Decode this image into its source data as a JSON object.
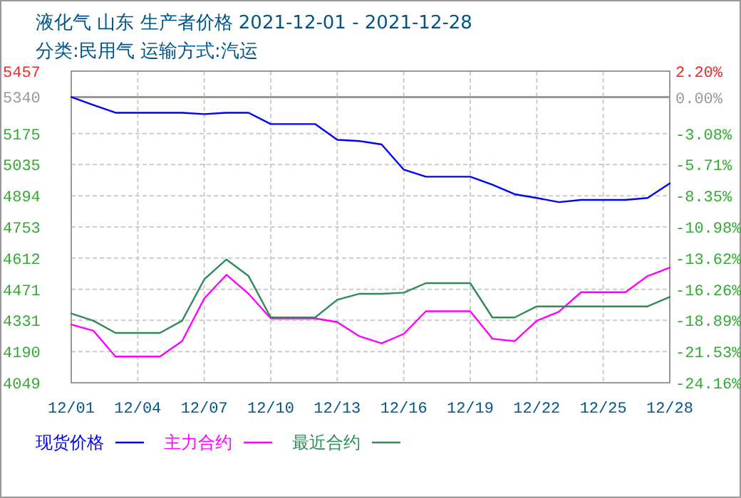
{
  "chart_data": {
    "type": "line",
    "title": "液化气 山东 生产者价格 2021-12-01 - 2021-12-28",
    "subtitle": "分类:民用气 运输方式:汽运",
    "x": [
      "2021-12-01",
      "2021-12-02",
      "2021-12-03",
      "2021-12-04",
      "2021-12-05",
      "2021-12-06",
      "2021-12-07",
      "2021-12-08",
      "2021-12-09",
      "2021-12-10",
      "2021-12-11",
      "2021-12-12",
      "2021-12-13",
      "2021-12-14",
      "2021-12-15",
      "2021-12-16",
      "2021-12-17",
      "2021-12-18",
      "2021-12-19",
      "2021-12-20",
      "2021-12-21",
      "2021-12-22",
      "2021-12-23",
      "2021-12-24",
      "2021-12-25",
      "2021-12-26",
      "2021-12-27",
      "2021-12-28"
    ],
    "series": [
      {
        "name": "现货价格",
        "color": "#0000ff",
        "values": [
          5340,
          5304,
          5269,
          5269,
          5269,
          5269,
          5263,
          5269,
          5269,
          5218,
          5218,
          5218,
          5147,
          5141,
          5126,
          5012,
          4980,
          4980,
          4980,
          4944,
          4901,
          4884,
          4865,
          4875,
          4875,
          4875,
          4884,
          4950
        ]
      },
      {
        "name": "主力合约",
        "color": "#ff00ff",
        "values": [
          4312,
          4284,
          4167,
          4167,
          4167,
          4237,
          4430,
          4537,
          4451,
          4340,
          4340,
          4340,
          4323,
          4259,
          4227,
          4270,
          4372,
          4372,
          4372,
          4248,
          4237,
          4329,
          4370,
          4458,
          4458,
          4458,
          4531,
          4569
        ]
      },
      {
        "name": "最近合约",
        "color": "#2e8b57",
        "values": [
          4362,
          4329,
          4274,
          4274,
          4274,
          4329,
          4516,
          4606,
          4531,
          4344,
          4344,
          4344,
          4424,
          4451,
          4451,
          4456,
          4499,
          4499,
          4499,
          4344,
          4344,
          4394,
          4394,
          4394,
          4394,
          4394,
          4394,
          4437
        ]
      }
    ],
    "xlim": [
      "2021-12-01",
      "2021-12-28"
    ],
    "xticks": [
      {
        "value": "2021-12-01",
        "label": "12/01"
      },
      {
        "value": "2021-12-04",
        "label": "12/04"
      },
      {
        "value": "2021-12-07",
        "label": "12/07"
      },
      {
        "value": "2021-12-10",
        "label": "12/10"
      },
      {
        "value": "2021-12-13",
        "label": "12/13"
      },
      {
        "value": "2021-12-16",
        "label": "12/16"
      },
      {
        "value": "2021-12-19",
        "label": "12/19"
      },
      {
        "value": "2021-12-22",
        "label": "12/22"
      },
      {
        "value": "2021-12-25",
        "label": "12/25"
      },
      {
        "value": "2021-12-28",
        "label": "12/28"
      }
    ],
    "ylim": [
      4049,
      5457
    ],
    "yticks": [
      4049,
      4190,
      4331,
      4471,
      4612,
      4753,
      4894,
      5035,
      5175,
      5340,
      5457
    ],
    "y2lim": [
      -24.16,
      2.2
    ],
    "y2ticks": [
      {
        "value": -24.16,
        "label": "-24.16%"
      },
      {
        "value": -21.53,
        "label": "-21.53%"
      },
      {
        "value": -18.89,
        "label": "-18.89%"
      },
      {
        "value": -16.26,
        "label": "-16.26%"
      },
      {
        "value": -13.62,
        "label": "-13.62%"
      },
      {
        "value": -10.98,
        "label": "-10.98%"
      },
      {
        "value": -8.35,
        "label": "-8.35%"
      },
      {
        "value": -5.71,
        "label": "-5.71%"
      },
      {
        "value": -3.08,
        "label": "-3.08%"
      },
      {
        "value": 0,
        "label": "0.00%"
      },
      {
        "value": 2.2,
        "label": "2.20%"
      }
    ],
    "ref_lines": [
      {
        "axis": "y",
        "value": 5340,
        "color": "#999999",
        "line_style": "solid"
      }
    ],
    "grid": true,
    "legend": "bottom",
    "marker": "none",
    "line_style": "solid"
  }
}
